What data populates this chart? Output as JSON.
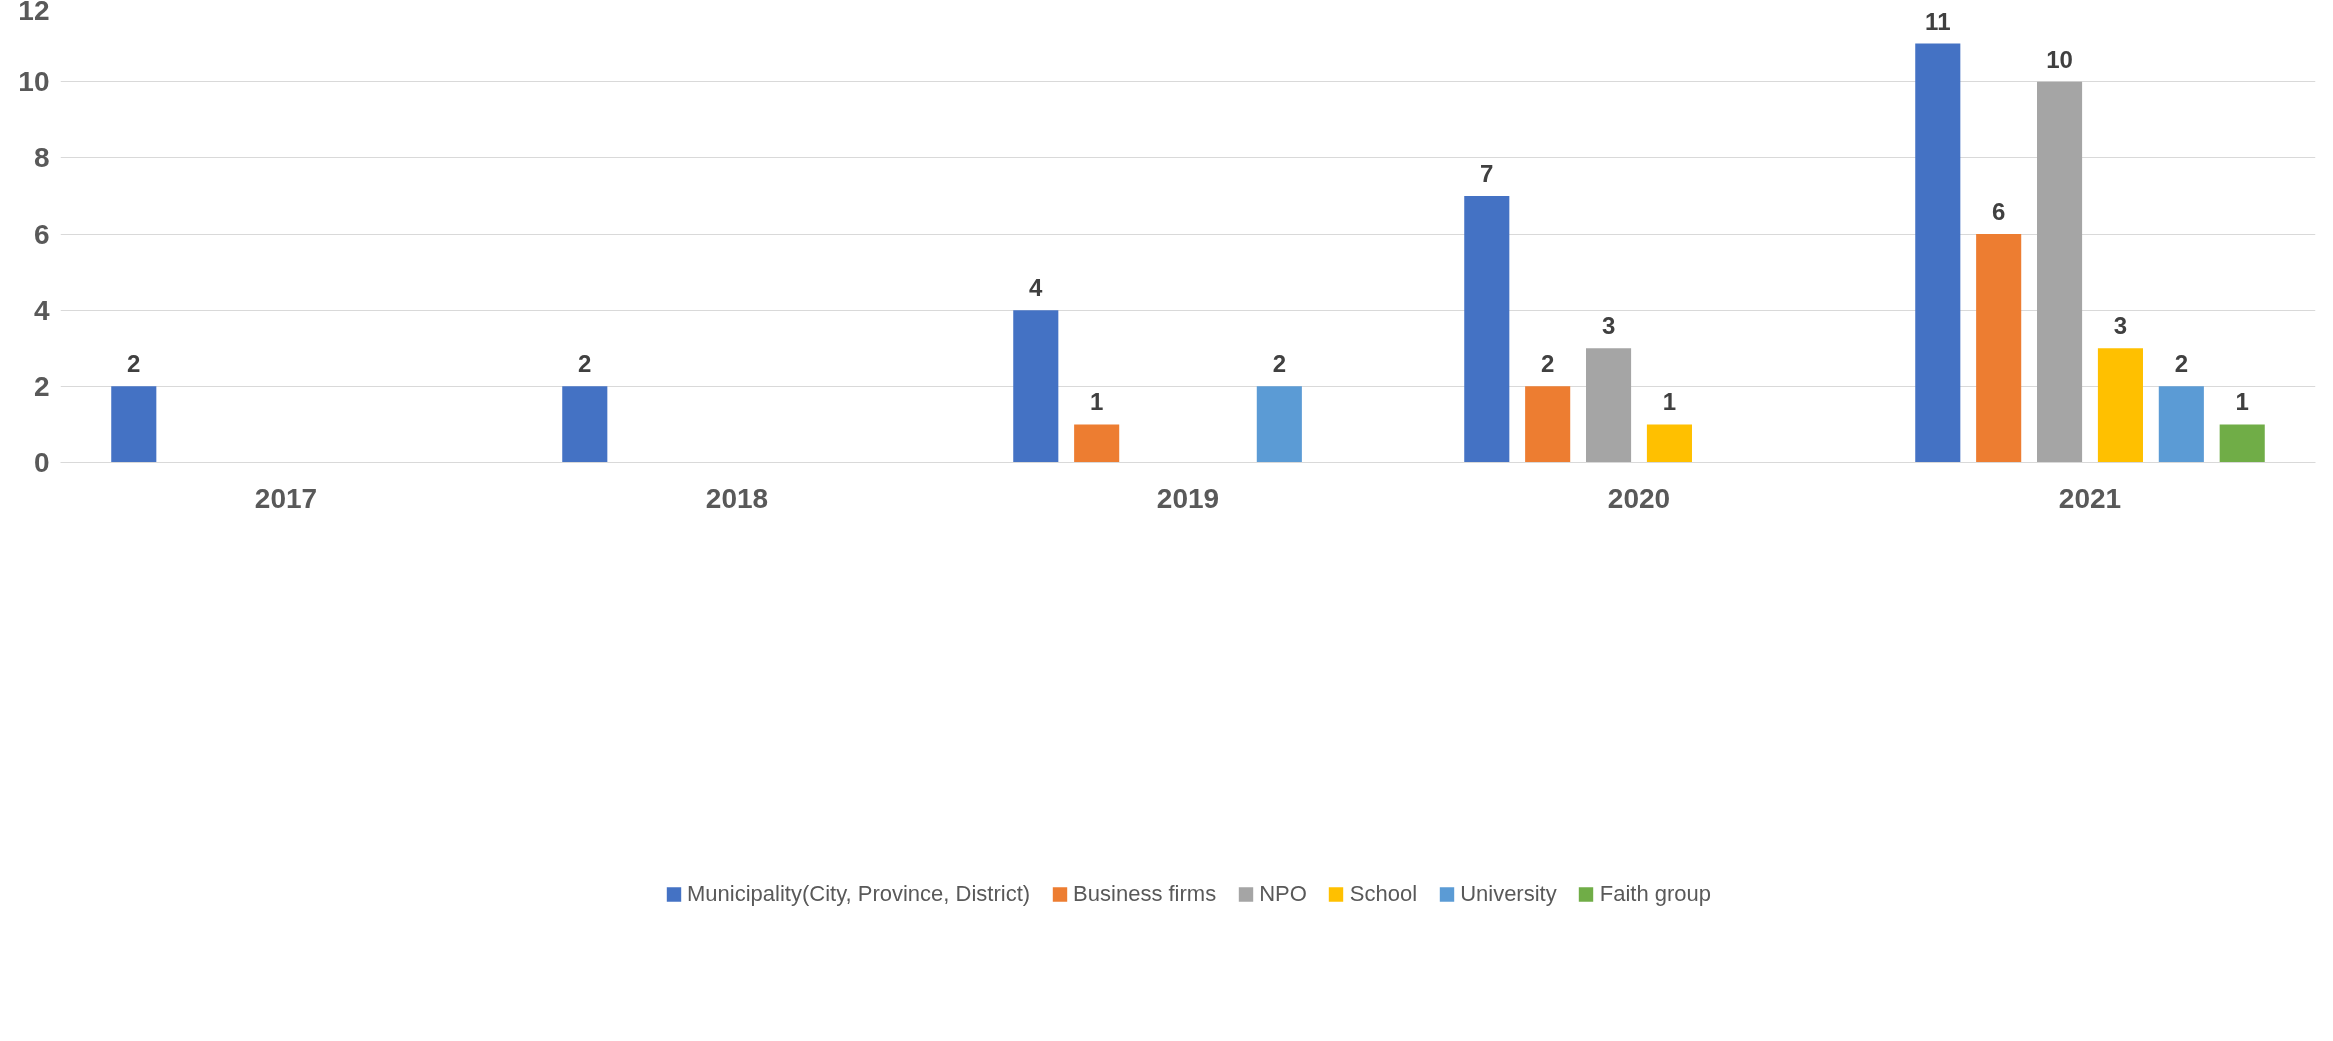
{
  "chart_data": {
    "type": "bar",
    "categories": [
      "2017",
      "2018",
      "2019",
      "2020",
      "2021"
    ],
    "series": [
      {
        "name": "Municipality(City, Province, District)",
        "color": "#4472c4",
        "values": [
          2,
          2,
          4,
          7,
          11
        ]
      },
      {
        "name": "Business firms",
        "color": "#ed7d31",
        "values": [
          null,
          null,
          1,
          2,
          6
        ]
      },
      {
        "name": "NPO",
        "color": "#a5a5a5",
        "values": [
          null,
          null,
          null,
          3,
          10
        ]
      },
      {
        "name": "School",
        "color": "#ffc000",
        "values": [
          null,
          null,
          null,
          1,
          3
        ]
      },
      {
        "name": "University",
        "color": "#5b9bd5",
        "values": [
          null,
          null,
          2,
          null,
          2
        ]
      },
      {
        "name": "Faith group",
        "color": "#70ad47",
        "values": [
          null,
          null,
          null,
          null,
          1
        ]
      }
    ],
    "ylim": [
      0,
      12
    ],
    "yticks": [
      0,
      2,
      4,
      6,
      8,
      10,
      12
    ],
    "grid": "y",
    "legend": "bottom",
    "data_labels": true
  }
}
